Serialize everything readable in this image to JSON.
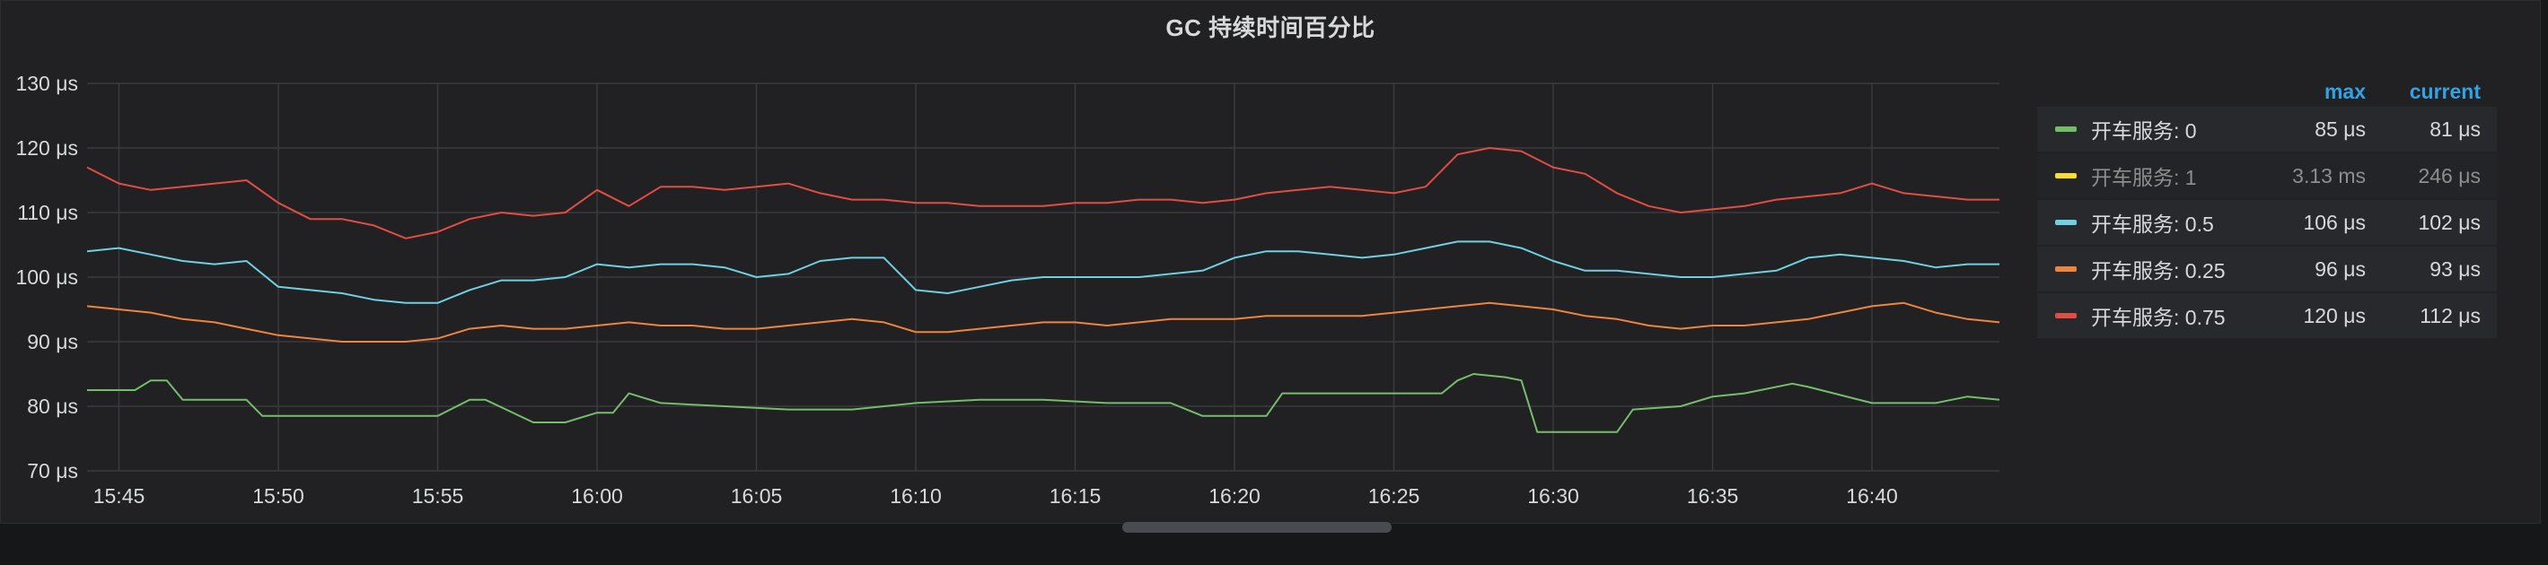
{
  "panel": {
    "title": "GC 持续时间百分比"
  },
  "legend": {
    "max_header": "max",
    "current_header": "current",
    "items": [
      {
        "name": "开车服务: 0",
        "max": "85 μs",
        "current": "81 μs",
        "color": "#73bf69",
        "hidden": false
      },
      {
        "name": "开车服务: 1",
        "max": "3.13 ms",
        "current": "246 μs",
        "color": "#fade2a",
        "hidden": true
      },
      {
        "name": "开车服务: 0.5",
        "max": "106 μs",
        "current": "102 μs",
        "color": "#6ed0e0",
        "hidden": false
      },
      {
        "name": "开车服务: 0.25",
        "max": "96 μs",
        "current": "93 μs",
        "color": "#ef843c",
        "hidden": false
      },
      {
        "name": "开车服务: 0.75",
        "max": "120 μs",
        "current": "112 μs",
        "color": "#e24d42",
        "hidden": false
      }
    ]
  },
  "chart_data": {
    "type": "line",
    "title": "GC 持续时间百分比",
    "xlabel": "",
    "ylabel": "",
    "ylim": [
      70,
      130
    ],
    "y_ticks": [
      "70 μs",
      "80 μs",
      "90 μs",
      "100 μs",
      "110 μs",
      "120 μs",
      "130 μs"
    ],
    "y_tick_values": [
      70,
      80,
      90,
      100,
      110,
      120,
      130
    ],
    "x_ticks": [
      "15:45",
      "15:50",
      "15:55",
      "16:00",
      "16:05",
      "16:10",
      "16:15",
      "16:20",
      "16:25",
      "16:30",
      "16:35",
      "16:40"
    ],
    "xlim": [
      "15:44:00",
      "16:44:00"
    ],
    "grid": true,
    "legend_position": "right",
    "series": [
      {
        "name": "开车服务: 0",
        "color": "#73bf69",
        "x": [
          "15:44:00",
          "15:45:30",
          "15:46:00",
          "15:46:30",
          "15:47:00",
          "15:49:00",
          "15:49:30",
          "15:54:00",
          "15:55:00",
          "15:56:00",
          "15:56:30",
          "15:58:00",
          "15:59:00",
          "16:00:00",
          "16:00:30",
          "16:01:00",
          "16:02:00",
          "16:04:00",
          "16:06:00",
          "16:08:00",
          "16:10:00",
          "16:12:00",
          "16:14:00",
          "16:16:00",
          "16:18:00",
          "16:19:00",
          "16:20:00",
          "16:21:00",
          "16:21:30",
          "16:24:00",
          "16:26:00",
          "16:26:30",
          "16:27:00",
          "16:27:30",
          "16:28:30",
          "16:29:00",
          "16:29:30",
          "16:30:00",
          "16:32:00",
          "16:32:30",
          "16:34:00",
          "16:35:00",
          "16:36:00",
          "16:37:30",
          "16:38:00",
          "16:40:00",
          "16:42:00",
          "16:43:00",
          "16:44:00"
        ],
        "y": [
          82.5,
          82.5,
          84,
          84,
          81,
          81,
          78.5,
          78.5,
          78.5,
          81,
          81,
          77.5,
          77.5,
          79,
          79,
          82,
          80.5,
          80,
          79.5,
          79.5,
          80.5,
          81,
          81,
          80.5,
          80.5,
          78.5,
          78.5,
          78.5,
          82,
          82,
          82,
          82,
          84,
          85,
          84.5,
          84,
          76,
          76,
          76,
          79.5,
          80,
          81.5,
          82,
          83.5,
          83,
          80.5,
          80.5,
          81.5,
          81
        ]
      },
      {
        "name": "开车服务: 0.25",
        "color": "#ef843c",
        "x": [
          "15:44:00",
          "15:45:00",
          "15:46:00",
          "15:47:00",
          "15:48:00",
          "15:49:00",
          "15:50:00",
          "15:51:00",
          "15:52:00",
          "15:53:00",
          "15:54:00",
          "15:55:00",
          "15:56:00",
          "15:57:00",
          "15:58:00",
          "15:59:00",
          "16:00:00",
          "16:01:00",
          "16:02:00",
          "16:03:00",
          "16:04:00",
          "16:05:00",
          "16:06:00",
          "16:07:00",
          "16:08:00",
          "16:09:00",
          "16:10:00",
          "16:11:00",
          "16:12:00",
          "16:13:00",
          "16:14:00",
          "16:15:00",
          "16:16:00",
          "16:17:00",
          "16:18:00",
          "16:19:00",
          "16:20:00",
          "16:21:00",
          "16:22:00",
          "16:23:00",
          "16:24:00",
          "16:25:00",
          "16:26:00",
          "16:27:00",
          "16:28:00",
          "16:29:00",
          "16:30:00",
          "16:31:00",
          "16:32:00",
          "16:33:00",
          "16:34:00",
          "16:35:00",
          "16:36:00",
          "16:37:00",
          "16:38:00",
          "16:39:00",
          "16:40:00",
          "16:41:00",
          "16:42:00",
          "16:43:00",
          "16:44:00"
        ],
        "y": [
          95.5,
          95,
          94.5,
          93.5,
          93,
          92,
          91,
          90.5,
          90,
          90,
          90,
          90.5,
          92,
          92.5,
          92,
          92,
          92.5,
          93,
          92.5,
          92.5,
          92,
          92,
          92.5,
          93,
          93.5,
          93,
          91.5,
          91.5,
          92,
          92.5,
          93,
          93,
          92.5,
          93,
          93.5,
          93.5,
          93.5,
          94,
          94,
          94,
          94,
          94.5,
          95,
          95.5,
          96,
          95.5,
          95,
          94,
          93.5,
          92.5,
          92,
          92.5,
          92.5,
          93,
          93.5,
          94.5,
          95.5,
          96,
          94.5,
          93.5,
          93
        ]
      },
      {
        "name": "开车服务: 0.5",
        "color": "#6ed0e0",
        "x": [
          "15:44:00",
          "15:45:00",
          "15:46:00",
          "15:47:00",
          "15:48:00",
          "15:49:00",
          "15:50:00",
          "15:51:00",
          "15:52:00",
          "15:53:00",
          "15:54:00",
          "15:55:00",
          "15:56:00",
          "15:57:00",
          "15:58:00",
          "15:59:00",
          "16:00:00",
          "16:01:00",
          "16:02:00",
          "16:03:00",
          "16:04:00",
          "16:05:00",
          "16:06:00",
          "16:07:00",
          "16:08:00",
          "16:09:00",
          "16:10:00",
          "16:11:00",
          "16:12:00",
          "16:13:00",
          "16:14:00",
          "16:15:00",
          "16:16:00",
          "16:17:00",
          "16:18:00",
          "16:19:00",
          "16:20:00",
          "16:21:00",
          "16:22:00",
          "16:23:00",
          "16:24:00",
          "16:25:00",
          "16:26:00",
          "16:27:00",
          "16:28:00",
          "16:29:00",
          "16:30:00",
          "16:31:00",
          "16:32:00",
          "16:33:00",
          "16:34:00",
          "16:35:00",
          "16:36:00",
          "16:37:00",
          "16:38:00",
          "16:39:00",
          "16:40:00",
          "16:41:00",
          "16:42:00",
          "16:43:00",
          "16:44:00"
        ],
        "y": [
          104,
          104.5,
          103.5,
          102.5,
          102,
          102.5,
          98.5,
          98,
          97.5,
          96.5,
          96,
          96,
          98,
          99.5,
          99.5,
          100,
          102,
          101.5,
          102,
          102,
          101.5,
          100,
          100.5,
          102.5,
          103,
          103,
          98,
          97.5,
          98.5,
          99.5,
          100,
          100,
          100,
          100,
          100.5,
          101,
          103,
          104,
          104,
          103.5,
          103,
          103.5,
          104.5,
          105.5,
          105.5,
          104.5,
          102.5,
          101,
          101,
          100.5,
          100,
          100,
          100.5,
          101,
          103,
          103.5,
          103,
          102.5,
          101.5,
          102,
          102
        ]
      },
      {
        "name": "开车服务: 0.75",
        "color": "#e24d42",
        "x": [
          "15:44:00",
          "15:45:00",
          "15:46:00",
          "15:47:00",
          "15:48:00",
          "15:49:00",
          "15:50:00",
          "15:51:00",
          "15:52:00",
          "15:53:00",
          "15:54:00",
          "15:55:00",
          "15:56:00",
          "15:57:00",
          "15:58:00",
          "15:59:00",
          "16:00:00",
          "16:01:00",
          "16:02:00",
          "16:03:00",
          "16:04:00",
          "16:05:00",
          "16:06:00",
          "16:07:00",
          "16:08:00",
          "16:09:00",
          "16:10:00",
          "16:11:00",
          "16:12:00",
          "16:13:00",
          "16:14:00",
          "16:15:00",
          "16:16:00",
          "16:17:00",
          "16:18:00",
          "16:19:00",
          "16:20:00",
          "16:21:00",
          "16:22:00",
          "16:23:00",
          "16:24:00",
          "16:25:00",
          "16:26:00",
          "16:27:00",
          "16:28:00",
          "16:29:00",
          "16:30:00",
          "16:31:00",
          "16:32:00",
          "16:33:00",
          "16:34:00",
          "16:35:00",
          "16:36:00",
          "16:37:00",
          "16:38:00",
          "16:39:00",
          "16:40:00",
          "16:41:00",
          "16:42:00",
          "16:43:00",
          "16:44:00"
        ],
        "y": [
          117,
          114.5,
          113.5,
          114,
          114.5,
          115,
          111.5,
          109,
          109,
          108,
          106,
          107,
          109,
          110,
          109.5,
          110,
          113.5,
          111,
          114,
          114,
          113.5,
          114,
          114.5,
          113,
          112,
          112,
          111.5,
          111.5,
          111,
          111,
          111,
          111.5,
          111.5,
          112,
          112,
          111.5,
          112,
          113,
          113.5,
          114,
          113.5,
          113,
          114,
          119,
          120,
          119.5,
          117,
          116,
          113,
          111,
          110,
          110.5,
          111,
          112,
          112.5,
          113,
          114.5,
          113,
          112.5,
          112,
          112
        ]
      }
    ]
  }
}
